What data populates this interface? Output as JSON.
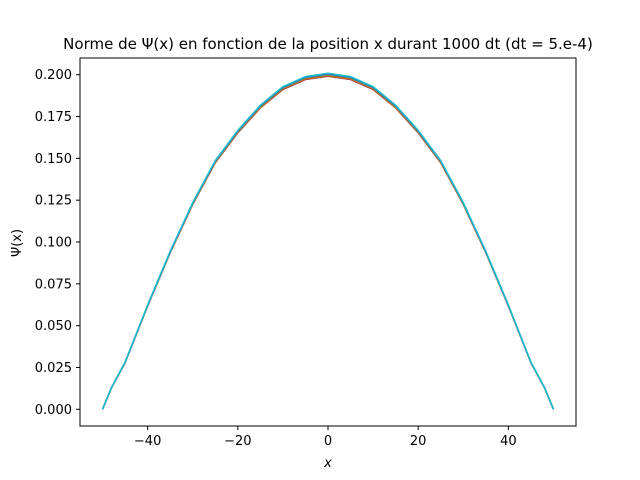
{
  "chart_data": {
    "type": "line",
    "title": "Norme de Ψ(x) en fonction de la position x durant 1000 dt (dt = 5.e-4)",
    "xlabel": "x",
    "ylabel": "Ψ(x)",
    "xlim": [
      -55,
      55
    ],
    "ylim": [
      -0.01,
      0.21
    ],
    "x_ticks": [
      -40,
      -20,
      0,
      20,
      40
    ],
    "x_tick_labels": [
      "−40",
      "−20",
      "0",
      "20",
      "40"
    ],
    "y_ticks": [
      0.0,
      0.025,
      0.05,
      0.075,
      0.1,
      0.125,
      0.15,
      0.175,
      0.2
    ],
    "y_tick_labels": [
      "0.000",
      "0.025",
      "0.050",
      "0.075",
      "0.100",
      "0.125",
      "0.150",
      "0.175",
      "0.200"
    ],
    "grid": false,
    "legend": "none",
    "colors": [
      "#8c564b",
      "#d62728",
      "#ff7f0e",
      "#2ca02c",
      "#9467bd",
      "#1f77b4",
      "#17becf"
    ],
    "series": [
      {
        "x": [
          -50,
          -48,
          -45,
          -40,
          -35,
          -30,
          -25,
          -20,
          -15,
          -10,
          -5,
          0,
          5,
          10,
          15,
          20,
          25,
          30,
          35,
          40,
          45,
          48,
          50
        ],
        "values": [
          0.0,
          0.013,
          0.028,
          0.062,
          0.094,
          0.123,
          0.148,
          0.166,
          0.181,
          0.192,
          0.198,
          0.2,
          0.198,
          0.192,
          0.181,
          0.166,
          0.148,
          0.123,
          0.094,
          0.062,
          0.028,
          0.013,
          0.0
        ]
      }
    ]
  }
}
